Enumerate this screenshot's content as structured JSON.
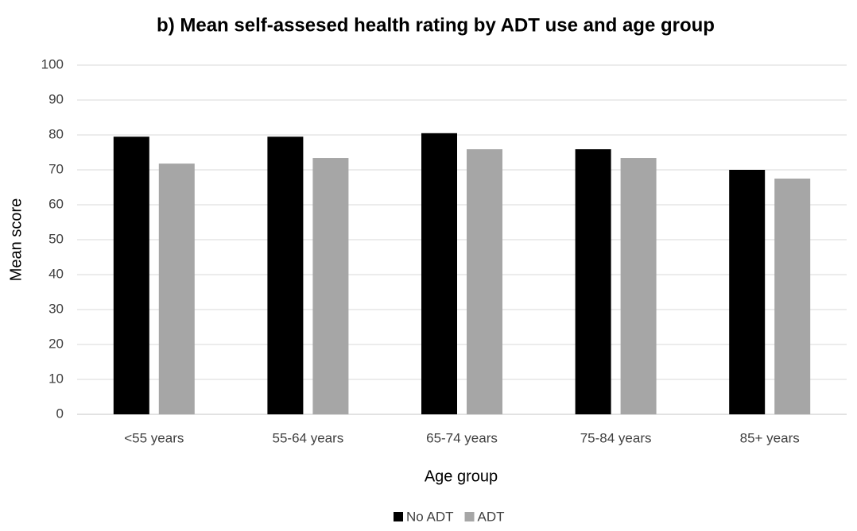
{
  "chart_data": {
    "type": "bar",
    "title": "b) Mean self-assesed health rating by ADT use and age group",
    "x_label": "Age group",
    "y_label": "Mean score",
    "categories": [
      "<55 years",
      "55-64 years",
      "65-74 years",
      "75-84 years",
      "85+ years"
    ],
    "series": [
      {
        "name": "No ADT",
        "color": "#000000",
        "values": [
          79.5,
          79.5,
          80.5,
          75.9,
          70.0
        ]
      },
      {
        "name": "ADT",
        "color": "#a6a6a6",
        "values": [
          71.8,
          73.4,
          75.9,
          73.4,
          67.5
        ]
      }
    ],
    "ylim": [
      0,
      100
    ],
    "yticks": [
      0,
      10,
      20,
      30,
      40,
      50,
      60,
      70,
      80,
      90,
      100
    ],
    "grid": true,
    "legend": "bottom"
  }
}
